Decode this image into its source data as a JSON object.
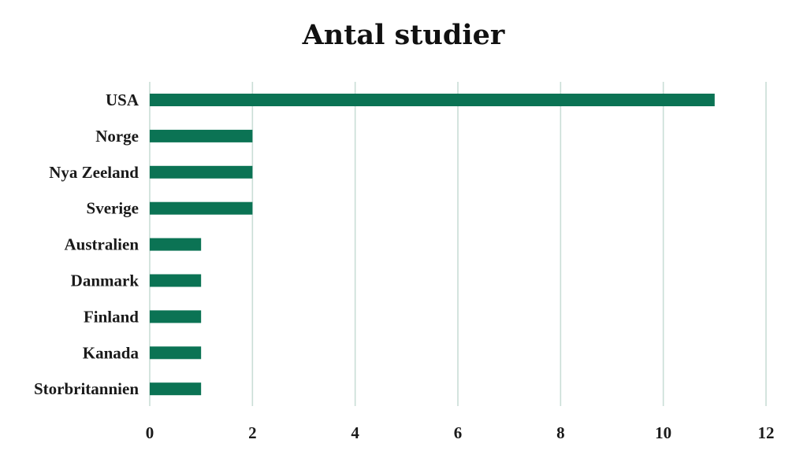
{
  "chart_data": {
    "type": "bar",
    "orientation": "horizontal",
    "title": "Antal studier",
    "categories": [
      "USA",
      "Norge",
      "Nya Zeeland",
      "Sverige",
      "Australien",
      "Danmark",
      "Finland",
      "Kanada",
      "Storbritannien"
    ],
    "values": [
      11,
      2,
      2,
      2,
      1,
      1,
      1,
      1,
      1
    ],
    "xlabel": "",
    "ylabel": "",
    "xlim": [
      0,
      12
    ],
    "xticks": [
      0,
      2,
      4,
      6,
      8,
      10,
      12
    ],
    "grid": "vertical",
    "legend": "none",
    "bar_color": "#0b7354",
    "grid_color": "#c9ded6"
  }
}
